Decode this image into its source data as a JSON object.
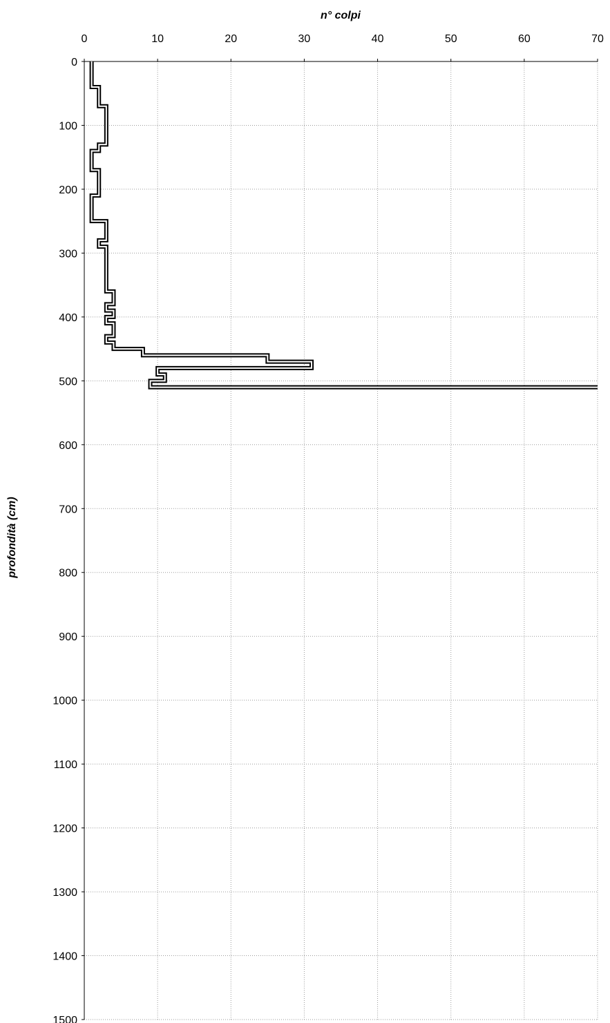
{
  "chart_data": {
    "type": "line",
    "xlabel": "n° colpi",
    "ylabel": "profondità (cm)",
    "xlim": [
      0,
      70
    ],
    "ylim": [
      0,
      1500
    ],
    "x_axis_position": "top",
    "y_axis_inverted": true,
    "grid": true,
    "line_color": "#000000",
    "x_ticks": [
      "0",
      "10",
      "20",
      "30",
      "40",
      "50",
      "60",
      "70"
    ],
    "y_ticks": [
      "0",
      "100",
      "200",
      "300",
      "400",
      "500",
      "600",
      "700",
      "800",
      "900",
      "1000",
      "1100",
      "1200",
      "1300",
      "1400",
      "1500"
    ],
    "series": [
      {
        "depth_intervals": [
          {
            "from": 0,
            "to": 40,
            "value": 1
          },
          {
            "from": 40,
            "to": 70,
            "value": 2
          },
          {
            "from": 70,
            "to": 130,
            "value": 3
          },
          {
            "from": 130,
            "to": 140,
            "value": 2
          },
          {
            "from": 140,
            "to": 170,
            "value": 1
          },
          {
            "from": 170,
            "to": 210,
            "value": 2
          },
          {
            "from": 210,
            "to": 250,
            "value": 1
          },
          {
            "from": 250,
            "to": 280,
            "value": 3
          },
          {
            "from": 280,
            "to": 290,
            "value": 2
          },
          {
            "from": 290,
            "to": 360,
            "value": 3
          },
          {
            "from": 360,
            "to": 380,
            "value": 4
          },
          {
            "from": 380,
            "to": 390,
            "value": 3
          },
          {
            "from": 390,
            "to": 400,
            "value": 4
          },
          {
            "from": 400,
            "to": 410,
            "value": 3
          },
          {
            "from": 410,
            "to": 430,
            "value": 4
          },
          {
            "from": 430,
            "to": 440,
            "value": 3
          },
          {
            "from": 440,
            "to": 450,
            "value": 4
          },
          {
            "from": 450,
            "to": 460,
            "value": 8
          },
          {
            "from": 460,
            "to": 470,
            "value": 25
          },
          {
            "from": 470,
            "to": 480,
            "value": 31
          },
          {
            "from": 480,
            "to": 490,
            "value": 10
          },
          {
            "from": 490,
            "to": 500,
            "value": 11
          },
          {
            "from": 500,
            "to": 510,
            "value": 9
          },
          {
            "from": 510,
            "to": 510,
            "value": 70
          }
        ]
      }
    ]
  }
}
